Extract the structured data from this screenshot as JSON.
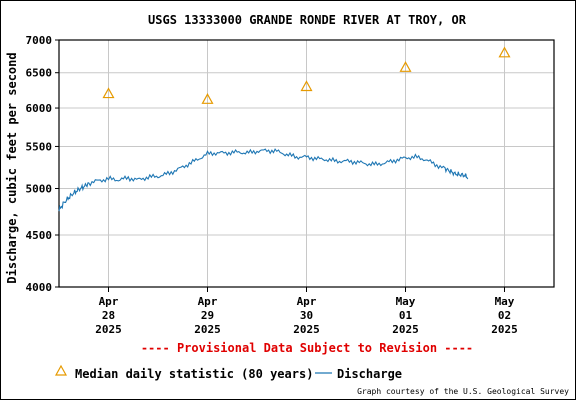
{
  "chart_data": {
    "type": "line",
    "title": "USGS 13333000 GRANDE RONDE RIVER AT TROY, OR",
    "ylabel": "Discharge, cubic feet per second",
    "xlabel": "",
    "y_scale": "log",
    "ylim": [
      4000,
      7000
    ],
    "y_ticks": [
      4000,
      4500,
      5000,
      5500,
      6000,
      6500,
      7000
    ],
    "y_tick_labels": [
      "4000",
      "4500",
      "5000",
      "5500",
      "6000",
      "6500",
      "7000"
    ],
    "x_ticks": [
      {
        "day": 0,
        "label": [
          "Apr",
          "28",
          "2025"
        ]
      },
      {
        "day": 1,
        "label": [
          "Apr",
          "29",
          "2025"
        ]
      },
      {
        "day": 2,
        "label": [
          "Apr",
          "30",
          "2025"
        ]
      },
      {
        "day": 3,
        "label": [
          "May",
          "01",
          "2025"
        ]
      },
      {
        "day": 4,
        "label": [
          "May",
          "02",
          "2025"
        ]
      }
    ],
    "x_range_days": [
      -0.5,
      4.5
    ],
    "grid": true,
    "series": [
      {
        "name": "Discharge",
        "color": "#1f77b4",
        "style": "line",
        "points": [
          [
            -0.5,
            4760
          ],
          [
            -0.45,
            4840
          ],
          [
            -0.4,
            4900
          ],
          [
            -0.35,
            4950
          ],
          [
            -0.3,
            4990
          ],
          [
            -0.25,
            5020
          ],
          [
            -0.2,
            5060
          ],
          [
            -0.1,
            5090
          ],
          [
            0.0,
            5110
          ],
          [
            0.1,
            5100
          ],
          [
            0.2,
            5120
          ],
          [
            0.3,
            5100
          ],
          [
            0.4,
            5130
          ],
          [
            0.5,
            5140
          ],
          [
            0.6,
            5170
          ],
          [
            0.7,
            5220
          ],
          [
            0.8,
            5280
          ],
          [
            0.9,
            5340
          ],
          [
            1.0,
            5410
          ],
          [
            1.1,
            5420
          ],
          [
            1.2,
            5420
          ],
          [
            1.3,
            5430
          ],
          [
            1.4,
            5420
          ],
          [
            1.5,
            5440
          ],
          [
            1.6,
            5450
          ],
          [
            1.7,
            5440
          ],
          [
            1.8,
            5400
          ],
          [
            1.9,
            5370
          ],
          [
            2.0,
            5370
          ],
          [
            2.1,
            5350
          ],
          [
            2.2,
            5340
          ],
          [
            2.3,
            5320
          ],
          [
            2.4,
            5320
          ],
          [
            2.5,
            5310
          ],
          [
            2.6,
            5290
          ],
          [
            2.7,
            5280
          ],
          [
            2.8,
            5300
          ],
          [
            2.9,
            5330
          ],
          [
            3.0,
            5360
          ],
          [
            3.1,
            5370
          ],
          [
            3.2,
            5340
          ],
          [
            3.3,
            5280
          ],
          [
            3.4,
            5230
          ],
          [
            3.45,
            5200
          ],
          [
            3.5,
            5170
          ],
          [
            3.55,
            5160
          ],
          [
            3.6,
            5150
          ],
          [
            3.63,
            5120
          ]
        ]
      },
      {
        "name": "Median daily statistic (80 years)",
        "color": "#e69a00",
        "style": "triangle",
        "points": [
          [
            0.0,
            6200
          ],
          [
            1.0,
            6120
          ],
          [
            2.0,
            6300
          ],
          [
            3.0,
            6580
          ],
          [
            4.0,
            6800
          ]
        ]
      }
    ],
    "legend": {
      "position": "bottom",
      "median_label": "Median daily statistic (80 years)",
      "discharge_label": "Discharge"
    }
  },
  "notice": "---- Provisional Data Subject to Revision ----",
  "notice_color": "#e00000",
  "credit": "Graph courtesy of the U.S. Geological Survey"
}
